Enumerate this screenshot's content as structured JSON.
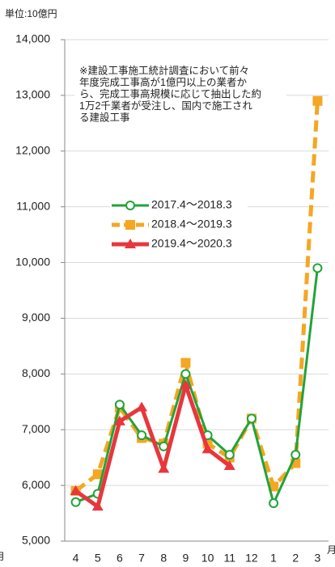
{
  "chart_data": {
    "type": "line",
    "unit_label": "単位:10億円",
    "x_unit": "月",
    "categories": [
      "4",
      "5",
      "6",
      "7",
      "8",
      "9",
      "10",
      "11",
      "12",
      "1",
      "2",
      "3"
    ],
    "ylim": [
      5000,
      14000
    ],
    "yticks": [
      {
        "value": 5000,
        "label": "5,000"
      },
      {
        "value": 6000,
        "label": "6,000"
      },
      {
        "value": 7000,
        "label": "7,000"
      },
      {
        "value": 8000,
        "label": "8,000"
      },
      {
        "value": 9000,
        "label": "9,000"
      },
      {
        "value": 10000,
        "label": "10,000"
      },
      {
        "value": 11000,
        "label": "11,000"
      },
      {
        "value": 12000,
        "label": "12,000"
      },
      {
        "value": 13000,
        "label": "13,000"
      },
      {
        "value": 14000,
        "label": "14,000"
      }
    ],
    "grid": true,
    "annotation": [
      "※建設工事施工統計調査において前々",
      "年度完成工事高が1億円以上の業者か",
      "ら、完成工事高規模に応じて抽出した約",
      "1万2千業者が受注し、国内で施工され",
      "る建設工事"
    ],
    "series": [
      {
        "name": "2017.4～2018.3",
        "color": "#22a33a",
        "marker": "circle",
        "line_style": "solid",
        "values": [
          5700,
          5850,
          7450,
          6900,
          6700,
          8000,
          6900,
          6550,
          7200,
          5680,
          6550,
          9900
        ]
      },
      {
        "name": "2018.4～2019.3",
        "color": "#f5a623",
        "marker": "square",
        "line_style": "dashed",
        "values": [
          5900,
          6200,
          7400,
          6850,
          6750,
          8200,
          6750,
          6500,
          7200,
          5980,
          6400,
          12900
        ]
      },
      {
        "name": "2019.4～2020.3",
        "color": "#e8363d",
        "marker": "triangle",
        "line_style": "solid",
        "values": [
          5900,
          5620,
          7150,
          7400,
          6300,
          7800,
          6650,
          6350,
          null,
          null,
          null,
          null
        ]
      }
    ]
  }
}
